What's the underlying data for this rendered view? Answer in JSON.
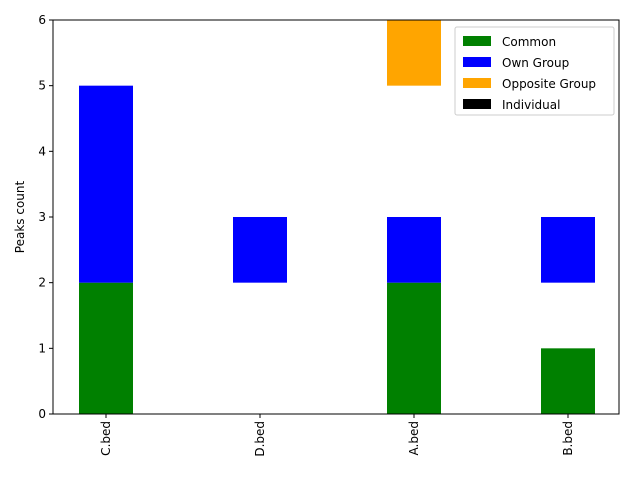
{
  "chart_data": {
    "type": "bar",
    "stacked": true,
    "categories": [
      "C.bed",
      "D.bed",
      "A.bed",
      "B.bed"
    ],
    "series": [
      {
        "name": "Common",
        "color": "#008000",
        "segments": [
          [
            0,
            2
          ],
          null,
          [
            0,
            2
          ],
          [
            0,
            1
          ]
        ]
      },
      {
        "name": "Own Group",
        "color": "#0000ff",
        "segments": [
          [
            2,
            5
          ],
          [
            2,
            3
          ],
          [
            2,
            3
          ],
          [
            2,
            3
          ]
        ]
      },
      {
        "name": "Opposite Group",
        "color": "#ffa500",
        "segments": [
          null,
          null,
          [
            5,
            6
          ],
          null
        ]
      },
      {
        "name": "Individual",
        "color": "#000000",
        "segments": [
          null,
          null,
          null,
          null
        ]
      }
    ],
    "title": "",
    "xlabel": "",
    "ylabel": "Peaks count",
    "ylim": [
      0,
      6
    ],
    "yticks": [
      "0",
      "1",
      "2",
      "3",
      "4",
      "5",
      "6"
    ],
    "grid": false,
    "legend_position": "top-right",
    "xtick_rotation": "vertical"
  }
}
